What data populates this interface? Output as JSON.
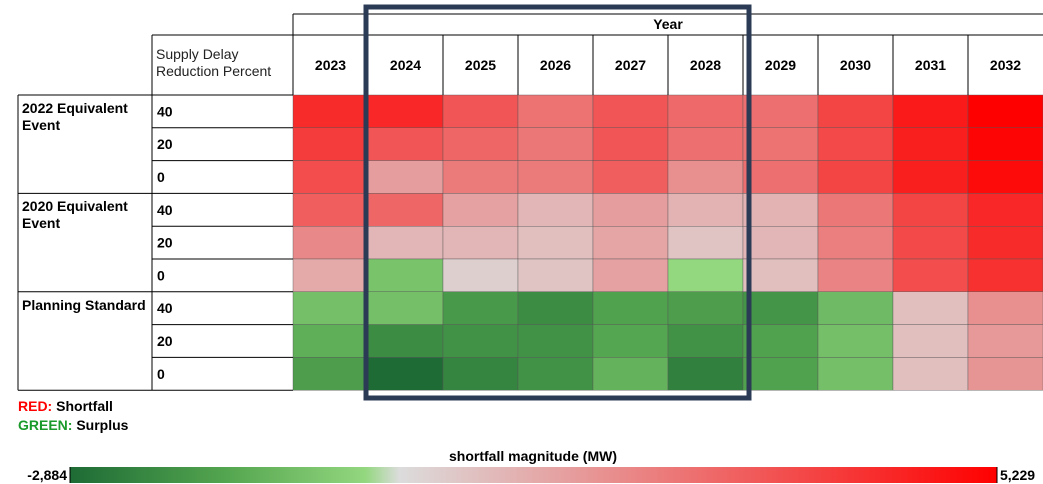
{
  "chart_data": {
    "type": "heatmap",
    "header": "Year",
    "row_header": "Supply Delay Reduction Percent",
    "columns": [
      "2023",
      "2024",
      "2025",
      "2026",
      "2027",
      "2028",
      "2029",
      "2030",
      "2031",
      "2032"
    ],
    "groups": [
      {
        "name": "2022 Equivalent Event",
        "levels": [
          "40",
          "20",
          "0"
        ]
      },
      {
        "name": "2020 Equivalent Event",
        "levels": [
          "40",
          "20",
          "0"
        ]
      },
      {
        "name": "Planning Standard",
        "levels": [
          "40",
          "20",
          "0"
        ]
      }
    ],
    "values": [
      [
        4200,
        4300,
        3200,
        2500,
        3200,
        2700,
        2600,
        3600,
        4600,
        5229
      ],
      [
        3800,
        3200,
        2800,
        2400,
        3200,
        2600,
        2500,
        3500,
        4500,
        5100
      ],
      [
        3400,
        1500,
        2300,
        2300,
        3000,
        1800,
        2600,
        3600,
        4500,
        5000
      ],
      [
        3000,
        2800,
        1400,
        900,
        1500,
        1000,
        1000,
        2400,
        3600,
        4300
      ],
      [
        2000,
        900,
        900,
        700,
        1300,
        600,
        900,
        2200,
        3500,
        4200
      ],
      [
        1200,
        -800,
        300,
        600,
        1400,
        -300,
        700,
        2100,
        3400,
        4100
      ],
      [
        -900,
        -900,
        -1800,
        -2100,
        -1600,
        -1700,
        -1900,
        -1000,
        700,
        1800
      ],
      [
        -1300,
        -2100,
        -2000,
        -2000,
        -1500,
        -2000,
        -1600,
        -900,
        700,
        1600
      ],
      [
        -1700,
        -2884,
        -2300,
        -2000,
        -1200,
        -2400,
        -1600,
        -900,
        700,
        1700
      ]
    ],
    "legend": [
      {
        "key": "RED:",
        "text": "Shortfall",
        "color": "#ff0000"
      },
      {
        "key": "GREEN:",
        "text": "Surplus",
        "color": "#1a9a2a"
      }
    ],
    "colorbar_label": "shortfall magnitude (MW)",
    "zlim": [
      -2884,
      5229
    ],
    "zticks": [
      {
        "value": -2884,
        "label": "-2,884"
      },
      {
        "value": 5229,
        "label": "5,229"
      }
    ],
    "colorscale": [
      [
        -2884,
        "#1e6b35"
      ],
      [
        -1500,
        "#55a650"
      ],
      [
        -300,
        "#93d77f"
      ],
      [
        0,
        "#dcdcdc"
      ],
      [
        5229,
        "#ff0000"
      ]
    ]
  }
}
